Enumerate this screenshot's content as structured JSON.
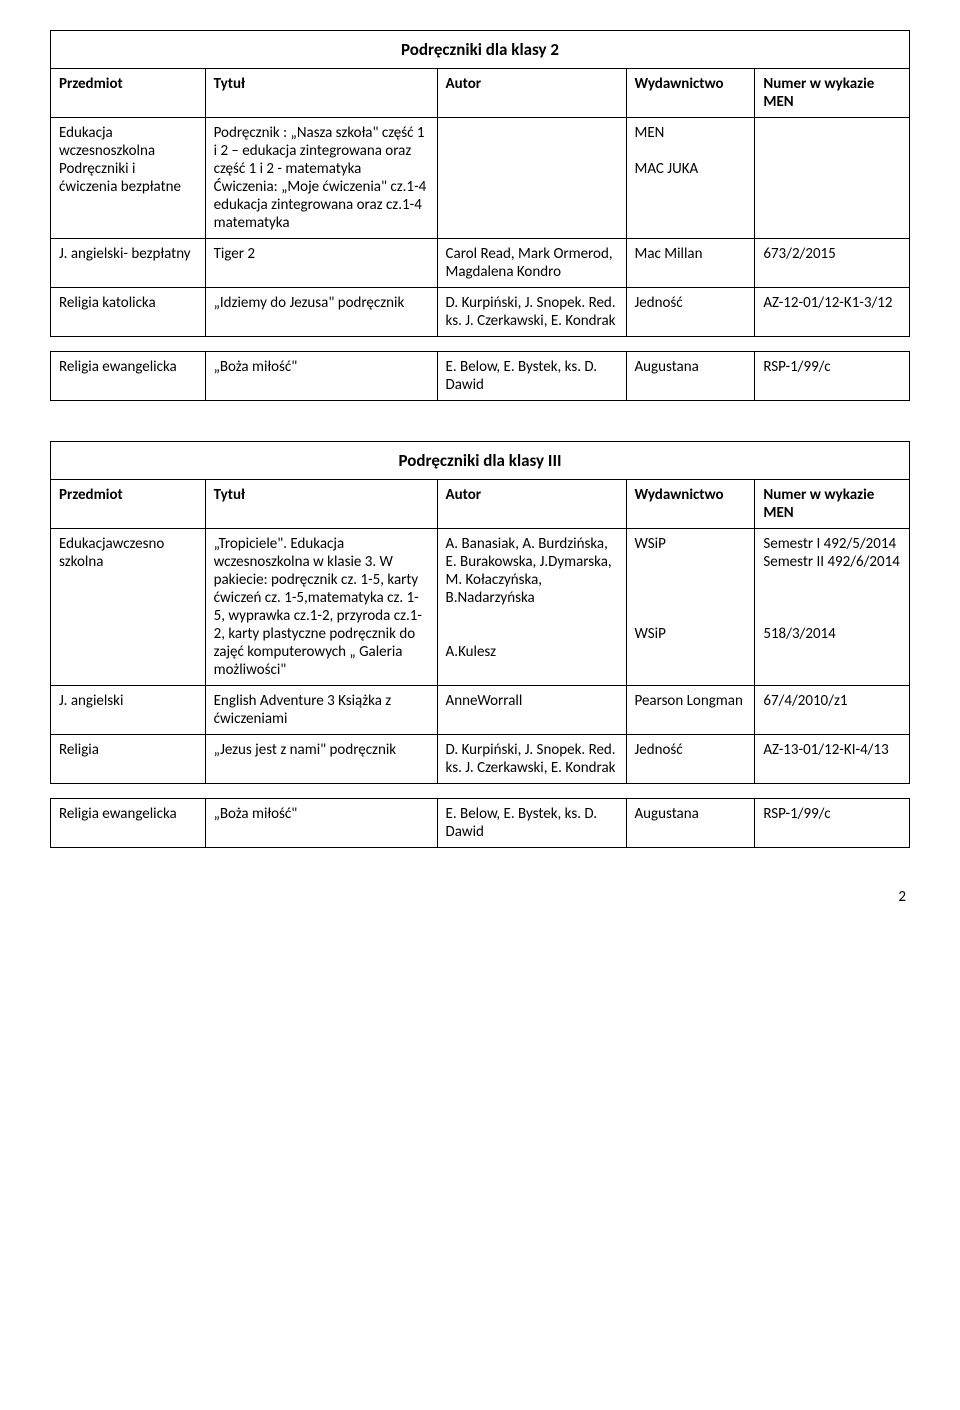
{
  "table1": {
    "title": "Podręczniki dla klasy 2",
    "headers": {
      "subject": "Przedmiot",
      "title": "Tytuł",
      "author": "Autor",
      "publisher": "Wydawnictwo",
      "number": "Numer w wykazie MEN"
    },
    "rows": [
      {
        "subject": "Edukacja wczesnoszkolna Podręczniki i ćwiczenia bezpłatne",
        "title": "Podręcznik : „Nasza szkoła\" część 1 i 2 – edukacja zintegrowana oraz część 1 i 2 - matematyka Ćwiczenia: „Moje ćwiczenia\" cz.1-4 edukacja zintegrowana oraz cz.1-4 matematyka",
        "author": "",
        "publisher": "MEN\n\nMAC JUKA",
        "number": ""
      },
      {
        "subject": "J. angielski- bezpłatny",
        "title": "Tiger 2",
        "author": "Carol Read, Mark Ormerod, Magdalena Kondro",
        "publisher": "Mac Millan",
        "number": "673/2/2015"
      },
      {
        "subject": "Religia katolicka",
        "title": "„Idziemy do Jezusa\" podręcznik",
        "author": "D. Kurpiński, J. Snopek. Red. ks. J. Czerkawski, E. Kondrak",
        "publisher": "Jedność",
        "number": "AZ-12-01/12-K1-3/12"
      }
    ],
    "religia": {
      "subject": "Religia ewangelicka",
      "title": "„Boża miłość\"",
      "author": "E. Below, E. Bystek, ks. D. Dawid",
      "publisher": "Augustana",
      "number": "RSP-1/99/c"
    }
  },
  "table2": {
    "title": "Podręczniki dla klasy III",
    "headers": {
      "subject": "Przedmiot",
      "title": "Tytuł",
      "author": "Autor",
      "publisher": "Wydawnictwo",
      "number": "Numer w wykazie MEN"
    },
    "rows": [
      {
        "subject": "Edukacjawczesno szkolna",
        "title": "„Tropiciele\". Edukacja wczesnoszkolna w klasie 3. W pakiecie: podręcznik cz. 1-5, karty ćwiczeń cz. 1-5,matematyka cz. 1-5, wyprawka cz.1-2, przyroda cz.1-2, karty plastyczne podręcznik do zajęć komputerowych „ Galeria możliwości\"",
        "author": "A. Banasiak, A. Burdzińska, E. Burakowska, J.Dymarska, M. Kołaczyńska, B.Nadarzyńska\n\n\nA.Kulesz",
        "publisher": "WSiP\n\n\n\n\nWSiP",
        "number": "Semestr I 492/5/2014 Semestr II 492/6/2014\n\n\n\n518/3/2014"
      },
      {
        "subject": "J. angielski",
        "title": "English Adventure 3 Książka z ćwiczeniami",
        "author": "AnneWorrall",
        "publisher": "Pearson Longman",
        "number": "67/4/2010/z1"
      },
      {
        "subject": "Religia",
        "title": "„Jezus jest z nami\" podręcznik",
        "author": "D. Kurpiński, J. Snopek. Red. ks. J. Czerkawski, E. Kondrak",
        "publisher": "Jedność",
        "number": "AZ-13-01/12-KI-4/13"
      }
    ],
    "religia": {
      "subject": "Religia ewangelicka",
      "title": "„Boża miłość\"",
      "author": "E. Below, E. Bystek, ks. D. Dawid",
      "publisher": "Augustana",
      "number": "RSP-1/99/c"
    }
  },
  "page_number": "2"
}
